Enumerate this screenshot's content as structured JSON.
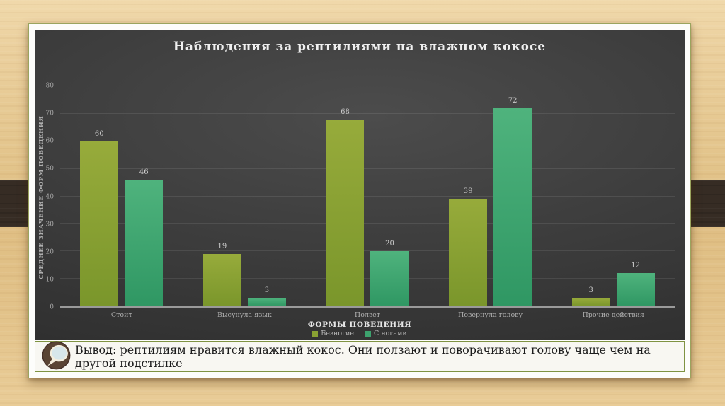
{
  "slide": {
    "conclusion_text": "Вывод: рептилиям нравится влажный кокос. Они ползают и поворачивают голову чаще чем на другой подстилке"
  },
  "chart_data": {
    "type": "bar",
    "title": "Наблюдения за рептилиями на влажном кокосе",
    "categories": [
      "Стоит",
      "Высунула язык",
      "Ползет",
      "Повернула голову",
      "Прочие действия"
    ],
    "series": [
      {
        "name": "Безногие",
        "color_top": "#97ab3b",
        "color_bottom": "#7a962b",
        "legend_color": "#8aa233",
        "values": [
          60,
          19,
          68,
          39,
          3
        ]
      },
      {
        "name": "С ногами",
        "color_top": "#4fb37d",
        "color_bottom": "#2f9763",
        "legend_color": "#3da26e",
        "values": [
          46,
          3,
          20,
          72,
          12
        ]
      }
    ],
    "xlabel": "ФОРМЫ ПОВЕДЕНИЯ",
    "ylabel": "СРЕДНЕЕ ЗНАЧЕНИЕ ФОРМ ПОВЕДЕНИЯ",
    "ylim": [
      0,
      80
    ],
    "yticks": [
      0,
      10,
      20,
      30,
      40,
      50,
      60,
      70,
      80
    ],
    "grid": true,
    "legend_position": "bottom"
  }
}
